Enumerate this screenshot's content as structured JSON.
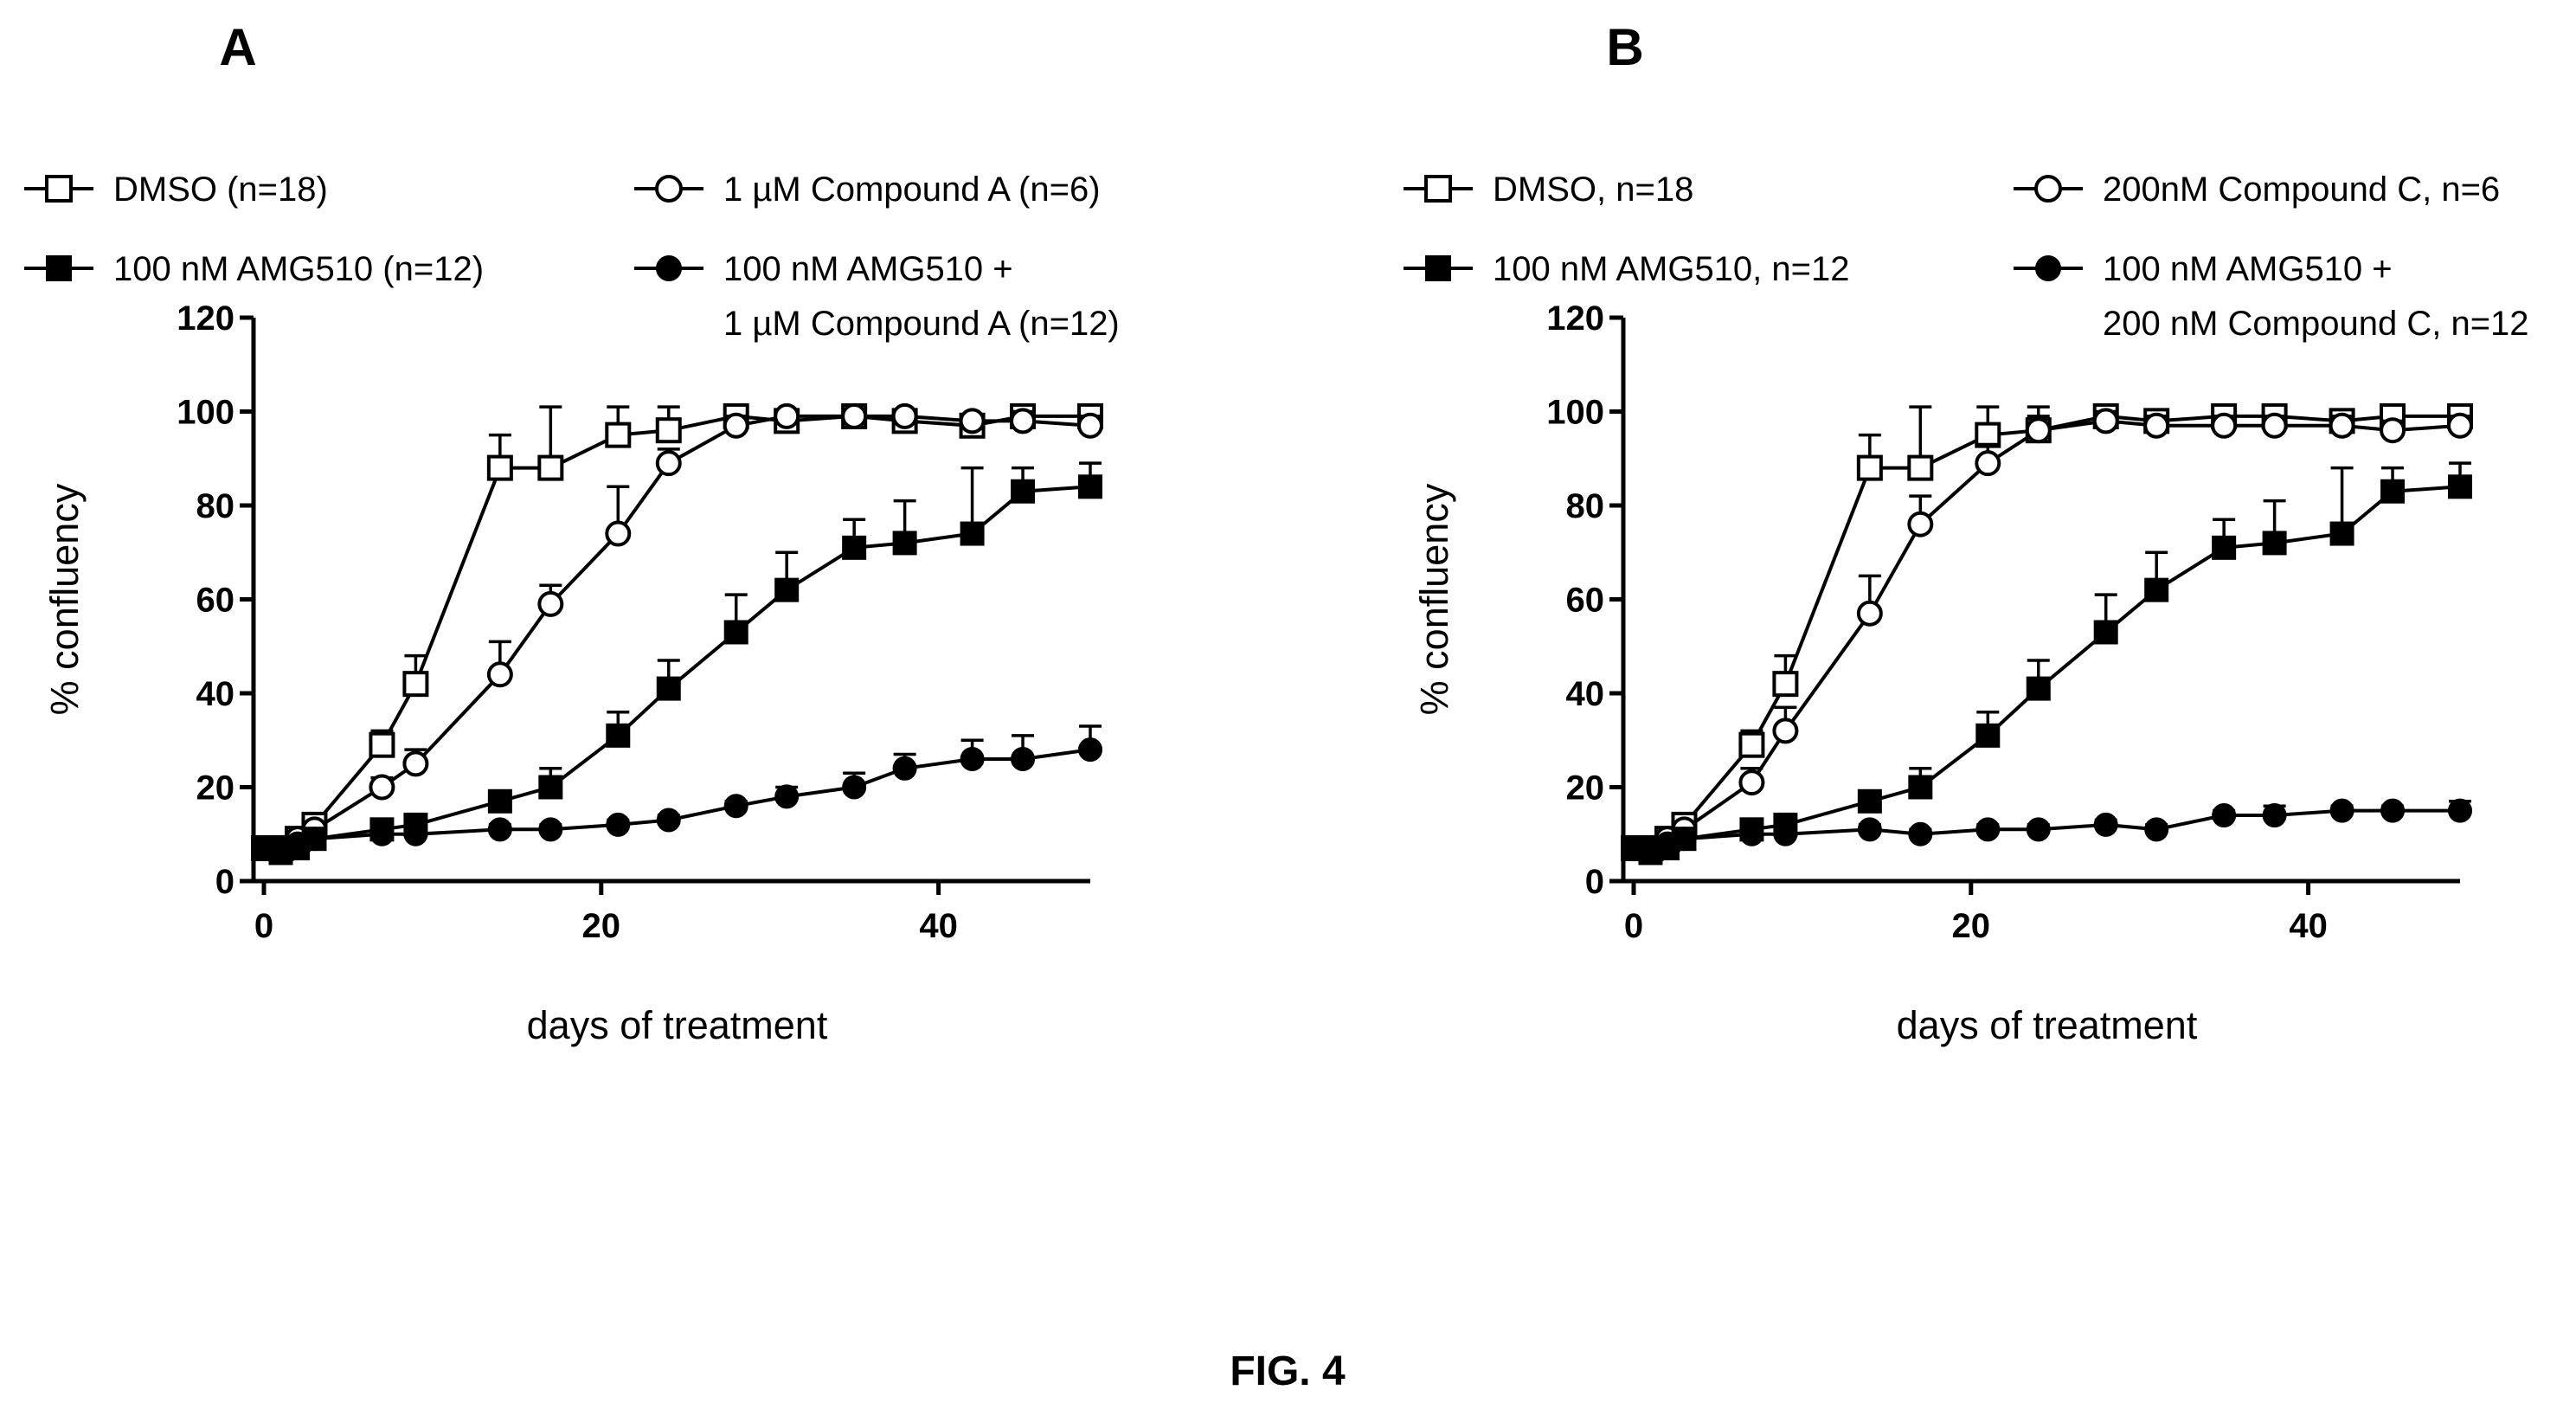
{
  "figure_caption": "FIG. 4",
  "chart_data": [
    {
      "panel": "A",
      "type": "line",
      "xlabel": "days of treatment",
      "ylabel": "% confluency",
      "xlim": [
        0,
        49
      ],
      "ylim": [
        0,
        120
      ],
      "xticks": [
        0,
        20,
        40
      ],
      "yticks": [
        0,
        20,
        40,
        60,
        80,
        100,
        120
      ],
      "error_bars": true,
      "legend_placement": "top",
      "series": [
        {
          "name": "DMSO (n=18)",
          "marker": "open-square",
          "points": [
            {
              "x": 0,
              "y": 7,
              "err": 1
            },
            {
              "x": 1,
              "y": 7,
              "err": 1
            },
            {
              "x": 2,
              "y": 9,
              "err": 1
            },
            {
              "x": 3,
              "y": 12,
              "err": 1
            },
            {
              "x": 7,
              "y": 29,
              "err": 3
            },
            {
              "x": 9,
              "y": 42,
              "err": 6
            },
            {
              "x": 14,
              "y": 88,
              "err": 7
            },
            {
              "x": 17,
              "y": 88,
              "err": 13
            },
            {
              "x": 21,
              "y": 95,
              "err": 6
            },
            {
              "x": 24,
              "y": 96,
              "err": 5
            },
            {
              "x": 28,
              "y": 99,
              "err": 2
            },
            {
              "x": 31,
              "y": 98,
              "err": 2
            },
            {
              "x": 35,
              "y": 99,
              "err": 1
            },
            {
              "x": 38,
              "y": 98,
              "err": 1
            },
            {
              "x": 42,
              "y": 97,
              "err": 2
            },
            {
              "x": 45,
              "y": 99,
              "err": 1
            },
            {
              "x": 49,
              "y": 99,
              "err": 1
            }
          ]
        },
        {
          "name": "1 µM Compound A (n=6)",
          "marker": "open-circle",
          "points": [
            {
              "x": 0,
              "y": 7,
              "err": 1
            },
            {
              "x": 1,
              "y": 7,
              "err": 1
            },
            {
              "x": 2,
              "y": 9,
              "err": 1
            },
            {
              "x": 3,
              "y": 11,
              "err": 1
            },
            {
              "x": 7,
              "y": 20,
              "err": 2
            },
            {
              "x": 9,
              "y": 25,
              "err": 3
            },
            {
              "x": 14,
              "y": 44,
              "err": 7
            },
            {
              "x": 17,
              "y": 59,
              "err": 4
            },
            {
              "x": 21,
              "y": 74,
              "err": 10
            },
            {
              "x": 24,
              "y": 89,
              "err": 3
            },
            {
              "x": 28,
              "y": 97,
              "err": 2
            },
            {
              "x": 31,
              "y": 99,
              "err": 1
            },
            {
              "x": 35,
              "y": 99,
              "err": 1
            },
            {
              "x": 38,
              "y": 99,
              "err": 1
            },
            {
              "x": 42,
              "y": 98,
              "err": 1
            },
            {
              "x": 45,
              "y": 98,
              "err": 2
            },
            {
              "x": 49,
              "y": 97,
              "err": 2
            }
          ]
        },
        {
          "name": "100 nM AMG510 (n=12)",
          "marker": "filled-square",
          "points": [
            {
              "x": 0,
              "y": 7,
              "err": 1
            },
            {
              "x": 1,
              "y": 6,
              "err": 1
            },
            {
              "x": 2,
              "y": 7,
              "err": 1
            },
            {
              "x": 3,
              "y": 9,
              "err": 1
            },
            {
              "x": 7,
              "y": 11,
              "err": 2
            },
            {
              "x": 9,
              "y": 12,
              "err": 2
            },
            {
              "x": 14,
              "y": 17,
              "err": 2
            },
            {
              "x": 17,
              "y": 20,
              "err": 4
            },
            {
              "x": 21,
              "y": 31,
              "err": 5
            },
            {
              "x": 24,
              "y": 41,
              "err": 6
            },
            {
              "x": 28,
              "y": 53,
              "err": 8
            },
            {
              "x": 31,
              "y": 62,
              "err": 8
            },
            {
              "x": 35,
              "y": 71,
              "err": 6
            },
            {
              "x": 38,
              "y": 72,
              "err": 9
            },
            {
              "x": 42,
              "y": 74,
              "err": 14
            },
            {
              "x": 45,
              "y": 83,
              "err": 5
            },
            {
              "x": 49,
              "y": 84,
              "err": 5
            }
          ]
        },
        {
          "name": "100 nM AMG510 + 1 µM Compound A (n=12)",
          "legend_lines": [
            "100 nM AMG510 +",
            "1 µM Compound A (n=12)"
          ],
          "marker": "filled-circle",
          "points": [
            {
              "x": 0,
              "y": 7,
              "err": 1
            },
            {
              "x": 1,
              "y": 7,
              "err": 1
            },
            {
              "x": 2,
              "y": 8,
              "err": 1
            },
            {
              "x": 3,
              "y": 9,
              "err": 1
            },
            {
              "x": 7,
              "y": 10,
              "err": 1
            },
            {
              "x": 9,
              "y": 10,
              "err": 1
            },
            {
              "x": 14,
              "y": 11,
              "err": 1
            },
            {
              "x": 17,
              "y": 11,
              "err": 1
            },
            {
              "x": 21,
              "y": 12,
              "err": 1
            },
            {
              "x": 24,
              "y": 13,
              "err": 1
            },
            {
              "x": 28,
              "y": 16,
              "err": 1
            },
            {
              "x": 31,
              "y": 18,
              "err": 2
            },
            {
              "x": 35,
              "y": 20,
              "err": 3
            },
            {
              "x": 38,
              "y": 24,
              "err": 3
            },
            {
              "x": 42,
              "y": 26,
              "err": 4
            },
            {
              "x": 45,
              "y": 26,
              "err": 5
            },
            {
              "x": 49,
              "y": 28,
              "err": 5
            }
          ]
        }
      ]
    },
    {
      "panel": "B",
      "type": "line",
      "xlabel": "days of treatment",
      "ylabel": "% confluency",
      "xlim": [
        0,
        49
      ],
      "ylim": [
        0,
        120
      ],
      "xticks": [
        0,
        20,
        40
      ],
      "yticks": [
        0,
        20,
        40,
        60,
        80,
        100,
        120
      ],
      "error_bars": true,
      "legend_placement": "top",
      "series": [
        {
          "name": "DMSO, n=18",
          "marker": "open-square",
          "points": [
            {
              "x": 0,
              "y": 7,
              "err": 1
            },
            {
              "x": 1,
              "y": 7,
              "err": 1
            },
            {
              "x": 2,
              "y": 9,
              "err": 1
            },
            {
              "x": 3,
              "y": 12,
              "err": 1
            },
            {
              "x": 7,
              "y": 29,
              "err": 3
            },
            {
              "x": 9,
              "y": 42,
              "err": 6
            },
            {
              "x": 14,
              "y": 88,
              "err": 7
            },
            {
              "x": 17,
              "y": 88,
              "err": 13
            },
            {
              "x": 21,
              "y": 95,
              "err": 6
            },
            {
              "x": 24,
              "y": 96,
              "err": 5
            },
            {
              "x": 28,
              "y": 99,
              "err": 2
            },
            {
              "x": 31,
              "y": 98,
              "err": 2
            },
            {
              "x": 35,
              "y": 99,
              "err": 1
            },
            {
              "x": 38,
              "y": 99,
              "err": 1
            },
            {
              "x": 42,
              "y": 98,
              "err": 2
            },
            {
              "x": 45,
              "y": 99,
              "err": 1
            },
            {
              "x": 49,
              "y": 99,
              "err": 1
            }
          ]
        },
        {
          "name": "200nM Compound C, n=6",
          "marker": "open-circle",
          "points": [
            {
              "x": 0,
              "y": 7,
              "err": 1
            },
            {
              "x": 1,
              "y": 7,
              "err": 1
            },
            {
              "x": 2,
              "y": 9,
              "err": 1
            },
            {
              "x": 3,
              "y": 11,
              "err": 1
            },
            {
              "x": 7,
              "y": 21,
              "err": 3
            },
            {
              "x": 9,
              "y": 32,
              "err": 5
            },
            {
              "x": 14,
              "y": 57,
              "err": 8
            },
            {
              "x": 17,
              "y": 76,
              "err": 6
            },
            {
              "x": 21,
              "y": 89,
              "err": 4
            },
            {
              "x": 24,
              "y": 96,
              "err": 3
            },
            {
              "x": 28,
              "y": 98,
              "err": 2
            },
            {
              "x": 31,
              "y": 97,
              "err": 2
            },
            {
              "x": 35,
              "y": 97,
              "err": 2
            },
            {
              "x": 38,
              "y": 97,
              "err": 2
            },
            {
              "x": 42,
              "y": 97,
              "err": 2
            },
            {
              "x": 45,
              "y": 96,
              "err": 2
            },
            {
              "x": 49,
              "y": 97,
              "err": 2
            }
          ]
        },
        {
          "name": "100 nM AMG510, n=12",
          "marker": "filled-square",
          "points": [
            {
              "x": 0,
              "y": 7,
              "err": 1
            },
            {
              "x": 1,
              "y": 6,
              "err": 1
            },
            {
              "x": 2,
              "y": 7,
              "err": 1
            },
            {
              "x": 3,
              "y": 9,
              "err": 1
            },
            {
              "x": 7,
              "y": 11,
              "err": 2
            },
            {
              "x": 9,
              "y": 12,
              "err": 2
            },
            {
              "x": 14,
              "y": 17,
              "err": 2
            },
            {
              "x": 17,
              "y": 20,
              "err": 4
            },
            {
              "x": 21,
              "y": 31,
              "err": 5
            },
            {
              "x": 24,
              "y": 41,
              "err": 6
            },
            {
              "x": 28,
              "y": 53,
              "err": 8
            },
            {
              "x": 31,
              "y": 62,
              "err": 8
            },
            {
              "x": 35,
              "y": 71,
              "err": 6
            },
            {
              "x": 38,
              "y": 72,
              "err": 9
            },
            {
              "x": 42,
              "y": 74,
              "err": 14
            },
            {
              "x": 45,
              "y": 83,
              "err": 5
            },
            {
              "x": 49,
              "y": 84,
              "err": 5
            }
          ]
        },
        {
          "name": "100 nM AMG510 + 200 nM Compound C, n=12",
          "legend_lines": [
            "100 nM AMG510 +",
            "200 nM Compound C, n=12"
          ],
          "marker": "filled-circle",
          "points": [
            {
              "x": 0,
              "y": 7,
              "err": 1
            },
            {
              "x": 1,
              "y": 7,
              "err": 1
            },
            {
              "x": 2,
              "y": 8,
              "err": 1
            },
            {
              "x": 3,
              "y": 9,
              "err": 1
            },
            {
              "x": 7,
              "y": 10,
              "err": 1
            },
            {
              "x": 9,
              "y": 10,
              "err": 1
            },
            {
              "x": 14,
              "y": 11,
              "err": 1
            },
            {
              "x": 17,
              "y": 10,
              "err": 1
            },
            {
              "x": 21,
              "y": 11,
              "err": 1
            },
            {
              "x": 24,
              "y": 11,
              "err": 1
            },
            {
              "x": 28,
              "y": 12,
              "err": 1
            },
            {
              "x": 31,
              "y": 11,
              "err": 1
            },
            {
              "x": 35,
              "y": 14,
              "err": 1
            },
            {
              "x": 38,
              "y": 14,
              "err": 2
            },
            {
              "x": 42,
              "y": 15,
              "err": 1
            },
            {
              "x": 45,
              "y": 15,
              "err": 1
            },
            {
              "x": 49,
              "y": 15,
              "err": 2
            }
          ]
        }
      ]
    }
  ]
}
